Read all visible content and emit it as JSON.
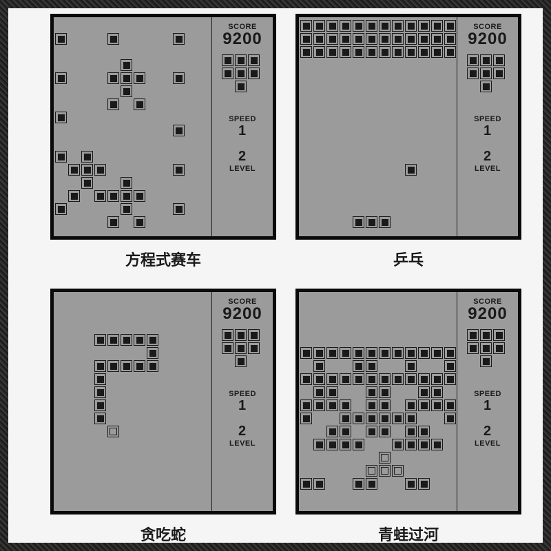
{
  "colors": {
    "screen_bg": "#9b9b9b",
    "frame": "#0a0a0a",
    "block_border": "#1a1a1a",
    "block_fill": "#1a1a1a",
    "text": "#1a1a1a",
    "page_bg": "#f5f5f5"
  },
  "cell_size": 19,
  "block_size": 17,
  "grid": {
    "cols": 12,
    "rows": 17
  },
  "labels": {
    "score": "SCORE",
    "speed": "SPEED",
    "level": "LEVEL"
  },
  "sidebar_preview": {
    "rows": 3,
    "cols": 3,
    "pattern": [
      [
        1,
        1,
        1
      ],
      [
        1,
        1,
        1
      ],
      [
        0,
        1,
        0
      ]
    ]
  },
  "games": [
    {
      "id": "racing",
      "caption": "方程式赛车",
      "score": "9200",
      "speed": "1",
      "level": "2",
      "blocks": [
        [
          1,
          0
        ],
        [
          1,
          4
        ],
        [
          1,
          9
        ],
        [
          4,
          0
        ],
        [
          4,
          9
        ],
        [
          3,
          5
        ],
        [
          4,
          4
        ],
        [
          4,
          5
        ],
        [
          4,
          6
        ],
        [
          5,
          5
        ],
        [
          6,
          4
        ],
        [
          6,
          6
        ],
        [
          7,
          0
        ],
        [
          8,
          9
        ],
        [
          10,
          0
        ],
        [
          10,
          2
        ],
        [
          11,
          1
        ],
        [
          11,
          2
        ],
        [
          11,
          3
        ],
        [
          12,
          2
        ],
        [
          13,
          1
        ],
        [
          13,
          3
        ],
        [
          11,
          9
        ],
        [
          12,
          5
        ],
        [
          13,
          4
        ],
        [
          13,
          5
        ],
        [
          13,
          6
        ],
        [
          14,
          0
        ],
        [
          14,
          5
        ],
        [
          14,
          9
        ],
        [
          15,
          4
        ],
        [
          15,
          6
        ]
      ]
    },
    {
      "id": "pong",
      "caption": "乒乓",
      "score": "9200",
      "speed": "1",
      "level": "2",
      "blocks": [
        [
          0,
          0
        ],
        [
          0,
          1
        ],
        [
          0,
          2
        ],
        [
          0,
          3
        ],
        [
          0,
          4
        ],
        [
          0,
          5
        ],
        [
          0,
          6
        ],
        [
          0,
          7
        ],
        [
          0,
          8
        ],
        [
          0,
          9
        ],
        [
          0,
          10
        ],
        [
          0,
          11
        ],
        [
          1,
          0
        ],
        [
          1,
          1
        ],
        [
          1,
          2
        ],
        [
          1,
          3
        ],
        [
          1,
          4
        ],
        [
          1,
          5
        ],
        [
          1,
          6
        ],
        [
          1,
          7
        ],
        [
          1,
          8
        ],
        [
          1,
          9
        ],
        [
          1,
          10
        ],
        [
          1,
          11
        ],
        [
          2,
          0
        ],
        [
          2,
          1
        ],
        [
          2,
          2
        ],
        [
          2,
          3
        ],
        [
          2,
          4
        ],
        [
          2,
          5
        ],
        [
          2,
          6
        ],
        [
          2,
          7
        ],
        [
          2,
          8
        ],
        [
          2,
          9
        ],
        [
          2,
          10
        ],
        [
          2,
          11
        ],
        [
          11,
          8
        ],
        [
          15,
          4
        ],
        [
          15,
          5
        ],
        [
          15,
          6
        ]
      ]
    },
    {
      "id": "snake",
      "caption": "贪吃蛇",
      "score": "9200",
      "speed": "1",
      "level": "2",
      "blocks": [
        [
          3,
          3
        ],
        [
          3,
          4
        ],
        [
          3,
          5
        ],
        [
          3,
          6
        ],
        [
          3,
          7
        ],
        [
          4,
          7
        ],
        [
          5,
          7
        ],
        [
          5,
          3
        ],
        [
          5,
          4
        ],
        [
          5,
          5
        ],
        [
          5,
          6
        ],
        [
          6,
          3
        ],
        [
          7,
          3
        ],
        [
          8,
          3
        ],
        [
          9,
          3
        ]
      ],
      "hollow_blocks": [
        [
          10,
          4
        ]
      ]
    },
    {
      "id": "frogger",
      "caption": "青蛙过河",
      "score": "9200",
      "speed": "1",
      "level": "2",
      "blocks": [
        [
          4,
          0
        ],
        [
          4,
          1
        ],
        [
          4,
          2
        ],
        [
          4,
          3
        ],
        [
          4,
          4
        ],
        [
          4,
          5
        ],
        [
          4,
          6
        ],
        [
          4,
          7
        ],
        [
          4,
          8
        ],
        [
          4,
          9
        ],
        [
          4,
          10
        ],
        [
          4,
          11
        ],
        [
          5,
          1
        ],
        [
          5,
          4
        ],
        [
          5,
          5
        ],
        [
          5,
          8
        ],
        [
          5,
          11
        ],
        [
          6,
          0
        ],
        [
          6,
          1
        ],
        [
          6,
          2
        ],
        [
          6,
          3
        ],
        [
          6,
          4
        ],
        [
          6,
          5
        ],
        [
          6,
          6
        ],
        [
          6,
          7
        ],
        [
          6,
          8
        ],
        [
          6,
          9
        ],
        [
          6,
          10
        ],
        [
          6,
          11
        ],
        [
          7,
          1
        ],
        [
          7,
          2
        ],
        [
          7,
          5
        ],
        [
          7,
          6
        ],
        [
          7,
          9
        ],
        [
          7,
          10
        ],
        [
          8,
          0
        ],
        [
          8,
          1
        ],
        [
          8,
          2
        ],
        [
          8,
          3
        ],
        [
          8,
          5
        ],
        [
          8,
          6
        ],
        [
          8,
          8
        ],
        [
          8,
          9
        ],
        [
          8,
          10
        ],
        [
          8,
          11
        ],
        [
          9,
          0
        ],
        [
          9,
          3
        ],
        [
          9,
          4
        ],
        [
          9,
          5
        ],
        [
          9,
          6
        ],
        [
          9,
          7
        ],
        [
          9,
          8
        ],
        [
          9,
          11
        ],
        [
          10,
          2
        ],
        [
          10,
          3
        ],
        [
          10,
          5
        ],
        [
          10,
          6
        ],
        [
          10,
          8
        ],
        [
          10,
          9
        ],
        [
          11,
          1
        ],
        [
          11,
          2
        ],
        [
          11,
          3
        ],
        [
          11,
          4
        ],
        [
          11,
          7
        ],
        [
          11,
          8
        ],
        [
          11,
          9
        ],
        [
          11,
          10
        ],
        [
          14,
          0
        ],
        [
          14,
          1
        ],
        [
          14,
          4
        ],
        [
          14,
          5
        ],
        [
          14,
          8
        ],
        [
          14,
          9
        ]
      ],
      "hollow_blocks": [
        [
          12,
          6
        ],
        [
          13,
          5
        ],
        [
          13,
          6
        ],
        [
          13,
          7
        ]
      ]
    }
  ]
}
